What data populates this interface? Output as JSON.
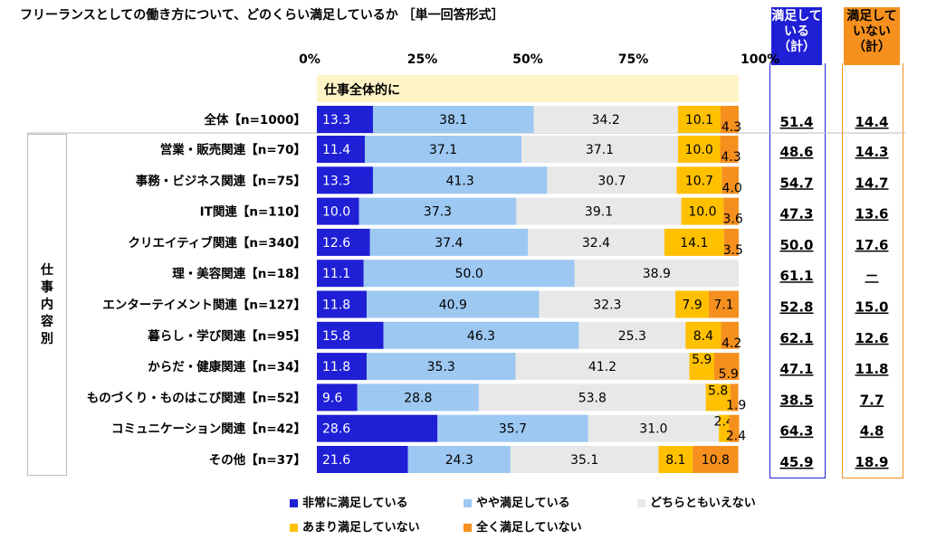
{
  "title": "フリーランスとしての働き方について、どのくらい満足しているか ［単一回答形式］",
  "headers": {
    "satisfied": [
      "満足して",
      "いる",
      "（計）"
    ],
    "unsatisfied": [
      "満足して",
      "いない",
      "（計）"
    ]
  },
  "section_label": "仕事全体的に",
  "group_label": [
    "仕",
    "事",
    "内",
    "容",
    "別"
  ],
  "colors": {
    "very_satisfied": "#1f1fd6",
    "somewhat_satisfied": "#9cc8f2",
    "neither": "#e8e8e8",
    "not_very_satisfied": "#ffc000",
    "not_at_all_satisfied": "#f5901e",
    "section_band": "#fff4c6"
  },
  "legend": [
    {
      "label": "非常に満足している",
      "color": "#1f1fd6"
    },
    {
      "label": "やや満足している",
      "color": "#9cc8f2"
    },
    {
      "label": "どちらともいえない",
      "color": "#e8e8e8"
    },
    {
      "label": "あまり満足していない",
      "color": "#ffc000"
    },
    {
      "label": "全く満足していない",
      "color": "#f5901e"
    }
  ],
  "chart_data": {
    "type": "bar",
    "stacked": true,
    "orientation": "horizontal",
    "xlim": [
      0,
      100
    ],
    "x_ticks": [
      "0%",
      "25%",
      "50%",
      "75%",
      "100%"
    ],
    "categories": [
      "全体【n=1000】",
      "営業・販売関連【n=70】",
      "事務・ビジネス関連【n=75】",
      "IT関連【n=110】",
      "クリエイティブ関連【n=340】",
      "理・美容関連【n=18】",
      "エンターテイメント関連【n=127】",
      "暮らし・学び関連【n=95】",
      "からだ・健康関連【n=34】",
      "ものづくり・ものはこび関連【n=52】",
      "コミュニケーション関連【n=42】",
      "その他【n=37】"
    ],
    "series": [
      {
        "name": "非常に満足している",
        "values": [
          13.3,
          11.4,
          13.3,
          10.0,
          12.6,
          11.1,
          11.8,
          15.8,
          11.8,
          9.6,
          28.6,
          21.6
        ]
      },
      {
        "name": "やや満足している",
        "values": [
          38.1,
          37.1,
          41.3,
          37.3,
          37.4,
          50.0,
          40.9,
          46.3,
          35.3,
          28.8,
          35.7,
          24.3
        ]
      },
      {
        "name": "どちらともいえない",
        "values": [
          34.2,
          37.1,
          30.7,
          39.1,
          32.4,
          38.9,
          32.3,
          25.3,
          41.2,
          53.8,
          31.0,
          35.1
        ]
      },
      {
        "name": "あまり満足していない",
        "values": [
          10.1,
          10.0,
          10.7,
          10.0,
          14.1,
          0,
          7.9,
          8.4,
          5.9,
          5.8,
          2.4,
          8.1
        ]
      },
      {
        "name": "全く満足していない",
        "values": [
          4.3,
          4.3,
          4.0,
          3.6,
          3.5,
          0,
          7.1,
          4.2,
          5.9,
          1.9,
          2.4,
          10.8
        ]
      }
    ],
    "satisfied_total": [
      "51.4",
      "48.6",
      "54.7",
      "47.3",
      "50.0",
      "61.1",
      "52.8",
      "62.1",
      "47.1",
      "38.5",
      "64.3",
      "45.9"
    ],
    "unsatisfied_total": [
      "14.4",
      "14.3",
      "14.7",
      "13.6",
      "17.6",
      "－",
      "15.0",
      "12.6",
      "11.8",
      "7.7",
      "4.8",
      "18.9"
    ]
  }
}
